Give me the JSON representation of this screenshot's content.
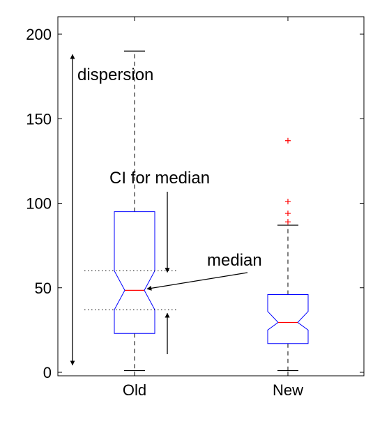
{
  "chart_data": {
    "type": "boxplot",
    "notched": true,
    "title": "",
    "xlabel": "",
    "ylabel": "",
    "ylim": [
      0,
      205
    ],
    "yticks": [
      0,
      50,
      100,
      150,
      200
    ],
    "grid": false,
    "categories": [
      "Old",
      "New"
    ],
    "boxes": [
      {
        "category": "Old",
        "whisker_low": 1,
        "q1": 23,
        "median": 48.5,
        "q3": 95,
        "whisker_high": 190,
        "notch_low": 37,
        "notch_high": 60,
        "outliers": []
      },
      {
        "category": "New",
        "whisker_low": 1,
        "q1": 17,
        "median": 29.5,
        "q3": 46,
        "whisker_high": 87,
        "notch_low": 25,
        "notch_high": 36,
        "outliers": [
          89,
          94,
          101,
          137
        ]
      }
    ],
    "annotations": {
      "dispersion": "dispersion",
      "ci_for_median": "CI for median",
      "median": "median"
    },
    "colors": {
      "box": "#0000ff",
      "median": "#ff0000",
      "outlier": "#ff0000",
      "whisker": "#000000"
    }
  }
}
